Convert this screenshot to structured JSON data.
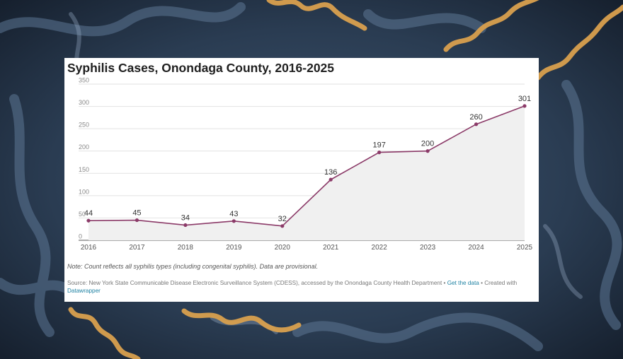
{
  "colors": {
    "line": "#8b3a68",
    "area": "#f0f0f0",
    "grid": "#e2e2e2",
    "axis": "#555555",
    "link": "#1d81a2"
  },
  "chart_data": {
    "type": "line",
    "title": "Syphilis Cases, Onondaga County, 2016-2025",
    "xlabel": "",
    "ylabel": "",
    "x": [
      "2016",
      "2017",
      "2018",
      "2019",
      "2020",
      "2021",
      "2022",
      "2023",
      "2024",
      "2025"
    ],
    "series": [
      {
        "values": [
          44,
          45,
          34,
          43,
          32,
          136,
          197,
          200,
          260,
          301
        ]
      }
    ],
    "ylim": [
      0,
      350
    ],
    "yticks": [
      0,
      50,
      100,
      150,
      200,
      250,
      300,
      350
    ],
    "grid": true,
    "area_fill": true,
    "data_labels": true,
    "note": "Note: Count reflects all syphilis types (including congenital syphilis). Data are provisional.",
    "source": {
      "text": "Source: New York State Communicable Disease Electronic Surveillance System (CDESS), accessed by the Onondaga County Health Department",
      "separator": "•",
      "get_data_label": "Get the data",
      "created_with": "Created with",
      "tool": "Datawrapper"
    }
  }
}
